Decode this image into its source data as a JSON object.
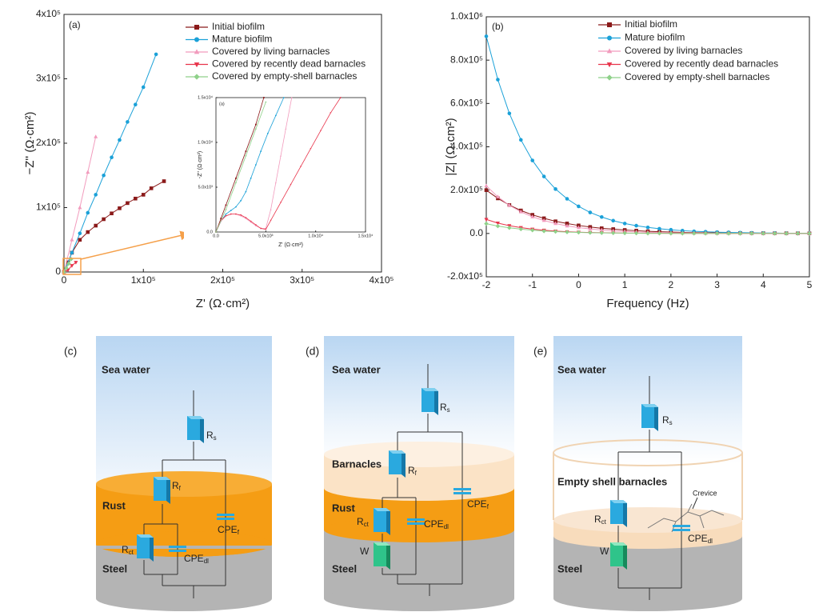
{
  "chart_data": [
    {
      "type": "line",
      "panel_label": "(a)",
      "x_label": "Z' (Ω·cm²)",
      "y_label": "−Z'' (Ω·cm²)",
      "xlim": [
        0,
        400000
      ],
      "ylim": [
        0,
        400000
      ],
      "xticks": [
        0,
        {
          "value": 100000,
          "label": "1x10⁵"
        },
        {
          "value": 200000,
          "label": "2x10⁵"
        },
        {
          "value": 300000,
          "label": "3x10⁵"
        },
        {
          "value": 400000,
          "label": "4x10⁵"
        }
      ],
      "yticks": [
        0,
        {
          "value": 100000,
          "label": "1x10⁵"
        },
        {
          "value": 200000,
          "label": "2x10⁵"
        },
        {
          "value": 300000,
          "label": "3x10⁵"
        },
        {
          "value": 400000,
          "label": "4x10⁵"
        }
      ],
      "legend": "upper right",
      "series": [
        {
          "name": "Initial biofilm",
          "color": "#8b1a1a",
          "marker": "square",
          "x": [
            0,
            5000,
            10000,
            20000,
            30000,
            40000,
            50000,
            60000,
            70000,
            80000,
            90000,
            100000,
            110000,
            126000
          ],
          "values": [
            0,
            15000,
            30000,
            50000,
            62000,
            72000,
            82000,
            91000,
            99000,
            107000,
            114000,
            120000,
            130000,
            141000
          ]
        },
        {
          "name": "Mature biofilm",
          "color": "#1ba1d8",
          "marker": "circle",
          "x": [
            0,
            10000,
            20000,
            30000,
            40000,
            50000,
            60000,
            70000,
            80000,
            90000,
            100000,
            116000
          ],
          "values": [
            0,
            30000,
            60000,
            92000,
            120000,
            150000,
            178000,
            205000,
            233000,
            260000,
            287000,
            338000
          ]
        },
        {
          "name": "Covered by living barnacles",
          "color": "#f29bbd",
          "marker": "triangle-up",
          "x": [
            0,
            10000,
            20000,
            30000,
            40000
          ],
          "values": [
            0,
            50000,
            100000,
            155000,
            210000
          ]
        },
        {
          "name": "Covered by recently dead barnacles",
          "color": "#e8334a",
          "marker": "triangle-down",
          "x": [
            0,
            5000,
            10000,
            15000
          ],
          "values": [
            0,
            3000,
            10000,
            15000
          ]
        },
        {
          "name": "Covered by empty-shell barnacles",
          "color": "#8fd18a",
          "marker": "diamond",
          "x": [
            0,
            3000,
            6000,
            9000
          ],
          "values": [
            0,
            6000,
            13000,
            20000
          ]
        }
      ]
    },
    {
      "type": "line",
      "panel_label": "(a)",
      "x_label": "Z' (Ω·cm²)",
      "y_label": "-Z'' (Ω·cm²)",
      "xlim": [
        0,
        15000
      ],
      "ylim": [
        0,
        15000
      ],
      "xticks": [
        {
          "value": 0,
          "label": "0.0"
        },
        {
          "value": 5000,
          "label": "5.0x10³"
        },
        {
          "value": 10000,
          "label": "1.0x10⁴"
        },
        {
          "value": 15000,
          "label": "1.5x10⁴"
        }
      ],
      "yticks": [
        {
          "value": 0,
          "label": "0.0"
        },
        {
          "value": 5000,
          "label": "5.0x10³"
        },
        {
          "value": 10000,
          "label": "1.0x10⁴"
        },
        {
          "value": 15000,
          "label": "1.5x10⁴"
        }
      ],
      "series": [
        {
          "color": "#8b1a1a",
          "marker": "square",
          "x": [
            0,
            500,
            1000,
            2000,
            3000,
            4000,
            4800
          ],
          "values": [
            0,
            1500,
            3000,
            6000,
            9000,
            12000,
            15000
          ]
        },
        {
          "color": "#1ba1d8",
          "marker": "circle",
          "x": [
            0,
            500,
            1000,
            1500,
            2000,
            2500,
            3000,
            3500,
            4000,
            4500,
            5200,
            6000,
            6800
          ],
          "values": [
            0,
            1200,
            2000,
            2400,
            2800,
            3500,
            4500,
            6000,
            7500,
            9000,
            11000,
            13000,
            15000
          ]
        },
        {
          "color": "#f29bbd",
          "marker": "triangle-up",
          "x": [
            0,
            500,
            1000,
            1500,
            2000,
            2500,
            3000,
            3500,
            4000,
            4500,
            5000,
            5500,
            6000,
            6500,
            7000,
            7600
          ],
          "values": [
            0,
            1200,
            1800,
            2000,
            2000,
            1800,
            1500,
            1100,
            700,
            400,
            400,
            2500,
            5500,
            8500,
            11500,
            15000
          ]
        },
        {
          "color": "#e8334a",
          "marker": "triangle-down",
          "x": [
            0,
            500,
            1000,
            1500,
            2000,
            2500,
            3000,
            3500,
            4000,
            4500,
            5000,
            5500,
            6500,
            7500,
            8500,
            9500,
            10500,
            11500,
            12500
          ],
          "values": [
            0,
            1300,
            1800,
            2000,
            2000,
            1900,
            1600,
            1200,
            800,
            400,
            300,
            1300,
            3300,
            5300,
            7300,
            9300,
            11300,
            13300,
            15000
          ]
        },
        {
          "color": "#8fd18a",
          "marker": "diamond",
          "x": [
            0,
            1000,
            2000,
            3000,
            4000,
            5000
          ],
          "values": [
            0,
            2500,
            5500,
            8500,
            11500,
            14500
          ]
        }
      ]
    },
    {
      "type": "line",
      "panel_label": "(b)",
      "x_label": "Frequency (Hz)",
      "y_label": "|Z| (Ω·cm²)",
      "xlim": [
        -2,
        5
      ],
      "ylim": [
        -200000,
        1000000
      ],
      "xticks": [
        -2,
        -1,
        0,
        1,
        2,
        3,
        4,
        5
      ],
      "yticks": [
        {
          "value": -200000,
          "label": "-2.0x10⁵"
        },
        {
          "value": 0,
          "label": "0.0"
        },
        {
          "value": 200000,
          "label": "2.0x10⁵"
        },
        {
          "value": 400000,
          "label": "4.0x10⁵"
        },
        {
          "value": 600000,
          "label": "6.0x10⁵"
        },
        {
          "value": 800000,
          "label": "8.0x10⁵"
        },
        {
          "value": 1000000,
          "label": "1.0x10⁶"
        }
      ],
      "legend": "upper right",
      "x": [
        -2,
        -1.75,
        -1.5,
        -1.25,
        -1,
        -0.75,
        -0.5,
        -0.25,
        0,
        0.25,
        0.5,
        0.75,
        1,
        1.25,
        1.5,
        1.75,
        2,
        2.25,
        2.5,
        2.75,
        3,
        3.25,
        3.5,
        3.75,
        4,
        4.25,
        4.5,
        4.75,
        5
      ],
      "series": [
        {
          "name": "Initial biofilm",
          "color": "#8b1a1a",
          "marker": "square",
          "values": [
            200000,
            162000,
            131000,
            106000,
            86000,
            70000,
            56000,
            46000,
            37000,
            30000,
            24000,
            20000,
            16000,
            13000,
            10000,
            8000,
            7000,
            5000,
            4000,
            3500,
            3000,
            2500,
            2000,
            1500,
            1200,
            1000,
            800,
            600,
            500
          ]
        },
        {
          "name": "Mature biofilm",
          "color": "#1ba1d8",
          "marker": "circle",
          "values": [
            910000,
            710000,
            554000,
            432000,
            337000,
            263000,
            205000,
            160000,
            125000,
            97000,
            76000,
            59000,
            46000,
            36000,
            28000,
            22000,
            17000,
            13000,
            10000,
            8000,
            6000,
            5000,
            4000,
            3000,
            2000,
            2000,
            1000,
            1000,
            1000
          ]
        },
        {
          "name": "Covered by living barnacles",
          "color": "#f29bbd",
          "marker": "triangle-up",
          "values": [
            220000,
            169000,
            130000,
            100000,
            77000,
            60000,
            46000,
            35000,
            27000,
            21000,
            16000,
            12000,
            9500,
            7300,
            5600,
            4300,
            3300,
            2600,
            2000,
            1500,
            1200,
            900,
            700,
            500,
            400,
            300,
            250,
            200,
            150
          ]
        },
        {
          "name": "Covered by recently dead barnacles",
          "color": "#e8334a",
          "marker": "triangle-down",
          "values": [
            65000,
            48000,
            36000,
            27000,
            20000,
            15000,
            11000,
            8000,
            6000,
            4500,
            3400,
            2500,
            1900,
            1400,
            1000,
            800,
            600,
            400,
            300,
            250,
            200,
            150,
            100,
            100,
            100,
            100,
            100,
            100,
            100
          ]
        },
        {
          "name": "Covered by empty-shell barnacles",
          "color": "#8fd18a",
          "marker": "diamond",
          "values": [
            45000,
            34000,
            26000,
            20000,
            15000,
            11000,
            8500,
            6400,
            4800,
            3600,
            2700,
            2000,
            1500,
            1100,
            800,
            600,
            500,
            400,
            300,
            200,
            200,
            100,
            100,
            100,
            100,
            100,
            100,
            100,
            100
          ]
        }
      ]
    }
  ],
  "diagrams": [
    {
      "label": "(c)",
      "texts": [
        "Sea water",
        "Rust",
        "Steel"
      ],
      "components": [
        {
          "name": "R",
          "sub": "s"
        },
        {
          "name": "R",
          "sub": "f"
        },
        {
          "name": "R",
          "sub": "ct"
        },
        {
          "name": "CPE",
          "sub": "dl"
        },
        {
          "name": "CPE",
          "sub": "f"
        }
      ]
    },
    {
      "label": "(d)",
      "texts": [
        "Sea water",
        "Barnacles",
        "Rust",
        "Steel"
      ],
      "components": [
        {
          "name": "R",
          "sub": "s"
        },
        {
          "name": "R",
          "sub": "f"
        },
        {
          "name": "R",
          "sub": "ct"
        },
        {
          "name": "CPE",
          "sub": "dl"
        },
        {
          "name": "CPE",
          "sub": "f"
        },
        {
          "name": "W"
        }
      ]
    },
    {
      "label": "(e)",
      "texts": [
        "Sea water",
        "Empty shell barnacles",
        "Steel",
        "Crevice"
      ],
      "components": [
        {
          "name": "R",
          "sub": "s"
        },
        {
          "name": "R",
          "sub": "ct"
        },
        {
          "name": "W"
        },
        {
          "name": "CPE",
          "sub": "dl"
        }
      ]
    }
  ]
}
